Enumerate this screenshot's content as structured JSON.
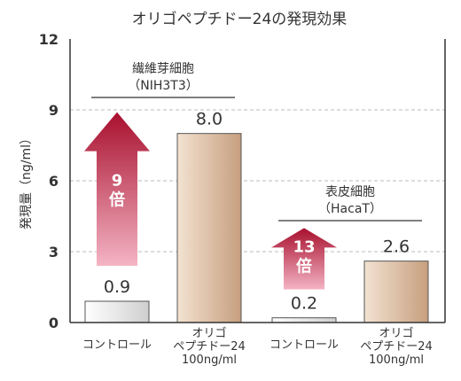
{
  "chart_data": {
    "type": "bar",
    "title": "オリゴペプチドー24の発現効果",
    "ylabel": "発現量（ng/ml）",
    "xlabel": "",
    "ylim": [
      0,
      12
    ],
    "yticks": [
      0,
      3,
      6,
      9,
      12
    ],
    "grid": true,
    "categories": [
      [
        "コントロール"
      ],
      [
        "オリゴ",
        "ペプチドー24",
        "100ng/ml"
      ],
      [
        "コントロール"
      ],
      [
        "オリゴ",
        "ペプチドー24",
        "100ng/ml"
      ]
    ],
    "values": [
      0.9,
      8.0,
      0.2,
      2.6
    ],
    "value_labels": [
      "0.9",
      "8.0",
      "0.2",
      "2.6"
    ],
    "bar_styles": [
      "control",
      "treatment",
      "control",
      "treatment"
    ],
    "groups": [
      {
        "name": [
          "繊維芽細胞",
          "（NIH3T3）"
        ],
        "bars": [
          0,
          1
        ]
      },
      {
        "name": [
          "表皮細胞",
          "（HacaT）"
        ],
        "bars": [
          2,
          3
        ]
      }
    ],
    "annotations": [
      {
        "group": 0,
        "lines": [
          "9",
          "倍"
        ],
        "from_value": 2.4,
        "to_value": 8.9
      },
      {
        "group": 1,
        "lines": [
          "13",
          "倍"
        ],
        "from_value": 1.4,
        "to_value": 4.0
      }
    ]
  },
  "colors": {
    "axis": "#333333",
    "grid": "#bbbbbb",
    "text": "#333333",
    "arrow_dark": "#a8102e",
    "arrow_light": "#f4b4c4",
    "arrow_text": "#ffffff",
    "control_light": "#ffffff",
    "control_dark": "#cfcfcf",
    "treatment_light": "#f3e2d2",
    "treatment_dark": "#c69f7e"
  }
}
